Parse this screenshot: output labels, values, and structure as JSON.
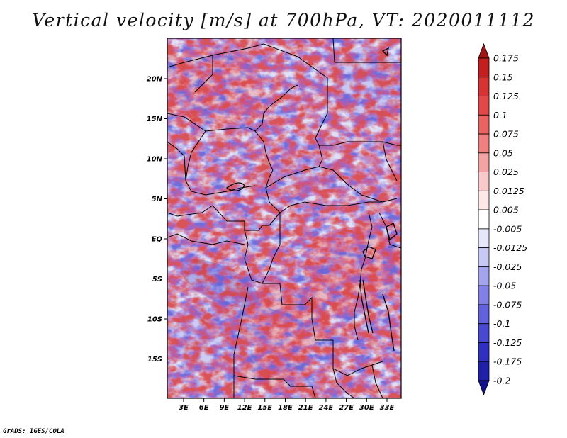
{
  "title": "Vertical velocity [m/s] at 700hPa, VT: 2020011112",
  "credit": "GrADS: IGES/COLA",
  "map": {
    "variable": "Vertical velocity",
    "units": "m/s",
    "level": "700hPa",
    "valid_time": "2020011112",
    "x_ticks": [
      "3E",
      "6E",
      "9E",
      "12E",
      "15E",
      "18E",
      "21E",
      "24E",
      "27E",
      "30E",
      "33E"
    ],
    "y_ticks": [
      "20N",
      "15N",
      "10N",
      "5N",
      "EQ",
      "5S",
      "10S",
      "15S"
    ]
  },
  "colorbar": {
    "levels": [
      "0.175",
      "0.15",
      "0.125",
      "0.1",
      "0.075",
      "0.05",
      "0.025",
      "0.0125",
      "0.005",
      "-0.005",
      "-0.0125",
      "-0.025",
      "-0.05",
      "-0.075",
      "-0.1",
      "-0.125",
      "-0.175",
      "-0.2"
    ],
    "colors": [
      "#a31515",
      "#c21f1f",
      "#d63333",
      "#e34848",
      "#ea6363",
      "#ef8080",
      "#f4a3a3",
      "#f9c8c8",
      "#fde7e7",
      "#ffffff",
      "#e7e7fc",
      "#c8c8f5",
      "#a3a3ee",
      "#8080e6",
      "#6262dc",
      "#4848d0",
      "#3030c0",
      "#2020a8",
      "#121290"
    ]
  }
}
